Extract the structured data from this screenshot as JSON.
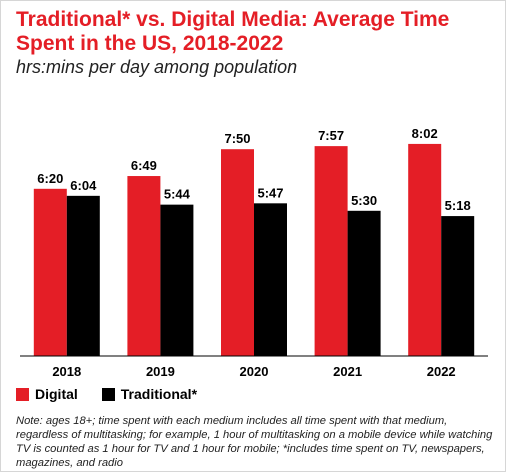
{
  "colors": {
    "digital": "#e41e26",
    "traditional": "#000000",
    "title": "#e41e26",
    "axis": "#000000"
  },
  "header": {
    "title": "Traditional* vs. Digital Media: Average Time Spent in the US, 2018-2022",
    "subtitle": "hrs:mins per day among population"
  },
  "legend": {
    "digital_label": "Digital",
    "traditional_label": "Traditional*"
  },
  "note": "Note: ages 18+; time spent with each medium includes all time spent with that medium, regardless of multitasking; for example, 1 hour of multitasking on a mobile device while watching TV is counted as 1 hour for TV and 1 hour for mobile; *includes time spent on TV, newspapers, magazines, and radio",
  "chart_data": {
    "type": "bar",
    "title": "Traditional* vs. Digital Media: Average Time Spent in the US, 2018-2022",
    "subtitle": "hrs:mins per day among population",
    "categories": [
      "2018",
      "2019",
      "2020",
      "2021",
      "2022"
    ],
    "ylim": [
      0,
      600
    ],
    "grid": false,
    "legend_position": "bottom-left",
    "series": [
      {
        "name": "Digital",
        "color": "#e41e26",
        "minutes": [
          380,
          409,
          470,
          477,
          482
        ],
        "labels": [
          "6:20",
          "6:49",
          "7:50",
          "7:57",
          "8:02"
        ]
      },
      {
        "name": "Traditional*",
        "color": "#000000",
        "minutes": [
          364,
          344,
          347,
          330,
          318
        ],
        "labels": [
          "6:04",
          "5:44",
          "5:47",
          "5:30",
          "5:18"
        ]
      }
    ]
  }
}
